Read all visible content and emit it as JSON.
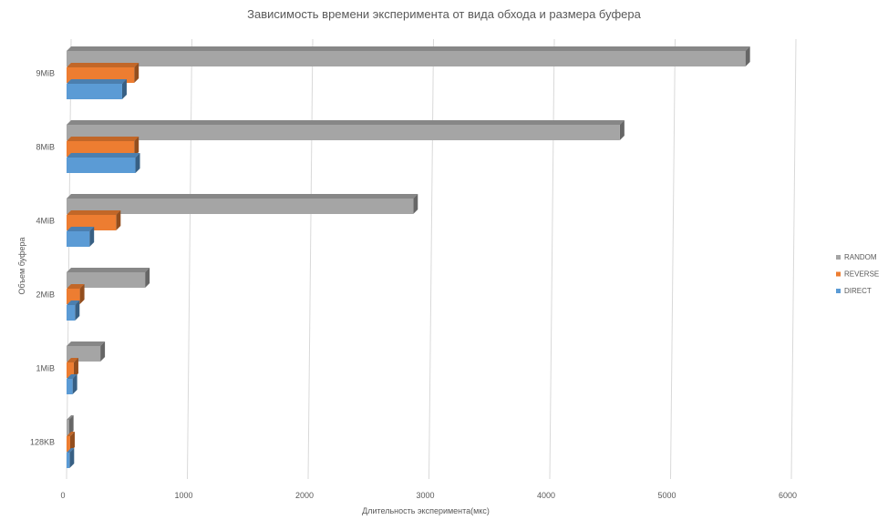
{
  "chart_data": {
    "type": "bar",
    "orientation": "horizontal",
    "title": "Зависимость времени эксперимента от вида обхода и размера буфера",
    "xlabel": "Длительность эксперимента(мкс)",
    "ylabel": "Объем буфера",
    "categories": [
      "128KB",
      "1MiB",
      "2MiB",
      "4MiB",
      "8MiB",
      "9MiB"
    ],
    "xlim": [
      0,
      6000
    ],
    "xticks": [
      0,
      1000,
      2000,
      3000,
      4000,
      5000,
      6000
    ],
    "grid": "vertical",
    "legend_position": "right",
    "series": [
      {
        "name": "RANDOM",
        "color": "#a5a5a5",
        "values": [
          20,
          280,
          650,
          2870,
          4580,
          5620
        ]
      },
      {
        "name": "REVERSE",
        "color": "#ed7d31",
        "values": [
          30,
          60,
          110,
          410,
          560,
          560
        ]
      },
      {
        "name": "DIRECT",
        "color": "#5b9bd5",
        "values": [
          25,
          50,
          70,
          190,
          570,
          460
        ]
      }
    ]
  }
}
